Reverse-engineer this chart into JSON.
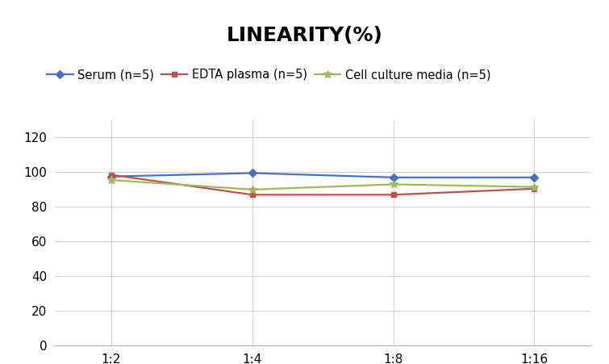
{
  "title": "LINEARITY(%)",
  "x_labels": [
    "1:2",
    "1:4",
    "1:8",
    "1:16"
  ],
  "x_positions": [
    0,
    1,
    2,
    3
  ],
  "series": [
    {
      "label": "Serum (n=5)",
      "values": [
        97.5,
        99.5,
        97.0,
        97.0
      ],
      "color": "#4472C4",
      "marker": "D",
      "markersize": 5,
      "linewidth": 1.6
    },
    {
      "label": "EDTA plasma (n=5)",
      "values": [
        98.5,
        87.0,
        87.0,
        90.5
      ],
      "color": "#C0504D",
      "marker": "s",
      "markersize": 5,
      "linewidth": 1.6
    },
    {
      "label": "Cell culture media (n=5)",
      "values": [
        95.5,
        90.0,
        93.0,
        91.5
      ],
      "color": "#9BBB59",
      "marker": "*",
      "markersize": 7,
      "linewidth": 1.6
    }
  ],
  "ylim": [
    0,
    130
  ],
  "yticks": [
    0,
    20,
    40,
    60,
    80,
    100,
    120
  ],
  "grid_color": "#D3D3D3",
  "background_color": "#FFFFFF",
  "title_fontsize": 18,
  "legend_fontsize": 10.5,
  "tick_fontsize": 11,
  "xlim": [
    -0.4,
    3.4
  ]
}
